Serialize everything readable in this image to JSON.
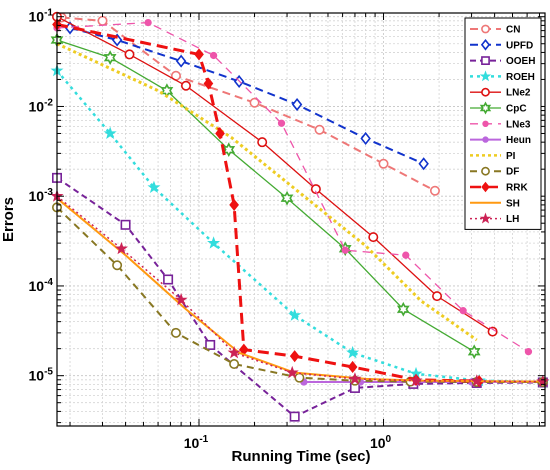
{
  "chart_data": {
    "type": "line",
    "xlabel": "Running Time (sec)",
    "ylabel": "Errors",
    "xscale": "log",
    "yscale": "log",
    "xlim": [
      0.017,
      7.5
    ],
    "ylim": [
      2.75e-06,
      0.11
    ],
    "grid": true,
    "legend_position": "top-right",
    "x_ticks": [
      {
        "value": 0.1,
        "base": "10",
        "exp": "-1"
      },
      {
        "value": 1,
        "base": "10",
        "exp": "0"
      }
    ],
    "y_ticks": [
      {
        "value": 1e-05,
        "base": "10",
        "exp": "-5"
      },
      {
        "value": 0.0001,
        "base": "10",
        "exp": "-4"
      },
      {
        "value": 0.001,
        "base": "10",
        "exp": "-3"
      },
      {
        "value": 0.01,
        "base": "10",
        "exp": "-2"
      },
      {
        "value": 0.1,
        "base": "10",
        "exp": "-1"
      }
    ],
    "series": [
      {
        "name": "CN",
        "color": "#ee7777",
        "dash": "8,5",
        "marker": "circle-open",
        "width": 2,
        "x": [
          0.018,
          0.03,
          0.075,
          0.2,
          0.45,
          1.0,
          1.9
        ],
        "y": [
          0.098,
          0.09,
          0.022,
          0.011,
          0.0055,
          0.0023,
          0.00115
        ]
      },
      {
        "name": "UPFD",
        "color": "#1133cc",
        "dash": "8,5",
        "marker": "diamond-open",
        "width": 2,
        "x": [
          0.02,
          0.036,
          0.08,
          0.165,
          0.34,
          0.8,
          1.65
        ],
        "y": [
          0.075,
          0.055,
          0.032,
          0.019,
          0.0105,
          0.0044,
          0.0023
        ]
      },
      {
        "name": "OOEH",
        "color": "#772299",
        "dash": "6,4",
        "marker": "square-open",
        "width": 2,
        "x": [
          0.017,
          0.04,
          0.068,
          0.115,
          0.33,
          0.7,
          1.45,
          3.2,
          7.3
        ],
        "y": [
          0.0016,
          0.00048,
          0.000118,
          2.2e-05,
          3.5e-06,
          7.3e-06,
          8.1e-06,
          8.3e-06,
          8.4e-06
        ]
      },
      {
        "name": "ROEH",
        "color": "#33dddd",
        "dash": "3,4",
        "marker": "star",
        "width": 2.5,
        "x": [
          0.017,
          0.033,
          0.057,
          0.12,
          0.33,
          0.68,
          1.5,
          3.3,
          7.3
        ],
        "y": [
          0.025,
          0.005,
          0.00125,
          0.0003,
          4.7e-05,
          1.8e-05,
          1.05e-05,
          8.8e-06,
          8.5e-06
        ]
      },
      {
        "name": "LNe2",
        "color": "#dd1111",
        "dash": "",
        "marker": "circle-open",
        "width": 1.3,
        "x": [
          0.017,
          0.042,
          0.085,
          0.22,
          0.43,
          0.88,
          1.95,
          3.9
        ],
        "y": [
          0.1,
          0.038,
          0.017,
          0.004,
          0.0012,
          0.00035,
          7.7e-05,
          3.1e-05
        ]
      },
      {
        "name": "CpC",
        "color": "#44aa33",
        "dash": "",
        "marker": "hexagram-open",
        "width": 1.3,
        "x": [
          0.017,
          0.033,
          0.067,
          0.145,
          0.3,
          0.62,
          1.28,
          3.1
        ],
        "y": [
          0.055,
          0.035,
          0.015,
          0.0033,
          0.00095,
          0.00026,
          5.5e-05,
          1.85e-05
        ]
      },
      {
        "name": "LNe3",
        "color": "#ee55aa",
        "dash": "8,6",
        "marker": "dot",
        "width": 1.3,
        "x": [
          0.017,
          0.053,
          0.12,
          0.28,
          0.62,
          1.32,
          2.7,
          6.1
        ],
        "y": [
          0.075,
          0.086,
          0.037,
          0.0065,
          0.00025,
          0.00022,
          5.3e-05,
          1.85e-05
        ]
      },
      {
        "name": "Heun",
        "color": "#bb66dd",
        "dash": "",
        "marker": "dot",
        "width": 2,
        "x": [
          0.37,
          0.75,
          1.5,
          3.0,
          7.3
        ],
        "y": [
          8.5e-06,
          8.5e-06,
          8.5e-06,
          8.5e-06,
          8.5e-06
        ]
      },
      {
        "name": "PI",
        "color": "#eecc22",
        "dash": "3,3",
        "marker": "none",
        "width": 3,
        "x": [
          0.017,
          0.06,
          0.15,
          0.35,
          0.8,
          1.6,
          3.2
        ],
        "y": [
          0.05,
          0.015,
          0.0045,
          0.0011,
          0.00028,
          6.8e-05,
          2.5e-05
        ]
      },
      {
        "name": "DF",
        "color": "#887722",
        "dash": "7,5",
        "marker": "circle-open",
        "width": 2,
        "x": [
          0.017,
          0.036,
          0.075,
          0.155,
          0.35,
          0.7,
          1.4,
          3.2,
          7.3
        ],
        "y": [
          0.00075,
          0.00017,
          3e-05,
          1.35e-05,
          9.5e-06,
          8.8e-06,
          8.6e-06,
          8.5e-06,
          8.5e-06
        ]
      },
      {
        "name": "RRK",
        "color": "#ee1111",
        "dash": "11,6",
        "marker": "diamond-filled",
        "width": 3,
        "x": [
          0.017,
          0.1,
          0.1125,
          0.13,
          0.155,
          0.175,
          0.33,
          0.68,
          1.5,
          3.3
        ],
        "y": [
          0.082,
          0.038,
          0.018,
          0.005,
          0.0008,
          1.95e-05,
          1.65e-05,
          1.25e-05,
          9e-06,
          8.7e-06
        ]
      },
      {
        "name": "SH",
        "color": "#ff9911",
        "dash": "",
        "marker": "none",
        "width": 2,
        "x": [
          0.017,
          0.04,
          0.085,
          0.165,
          0.33,
          0.8,
          1.6,
          3.2,
          7.3
        ],
        "y": [
          0.00095,
          0.00022,
          5.5e-05,
          1.8e-05,
          1.08e-05,
          9.2e-06,
          8.8e-06,
          8.7e-06,
          8.6e-06
        ]
      },
      {
        "name": "LH",
        "color": "#cc2255",
        "dash": "2,3",
        "marker": "star",
        "width": 1.5,
        "x": [
          0.017,
          0.038,
          0.08,
          0.155,
          0.32,
          0.7,
          1.5,
          3.2,
          7.3
        ],
        "y": [
          0.001,
          0.00026,
          7e-05,
          1.8e-05,
          1.08e-05,
          9.2e-06,
          8.8e-06,
          8.7e-06,
          8.6e-06
        ]
      }
    ]
  }
}
